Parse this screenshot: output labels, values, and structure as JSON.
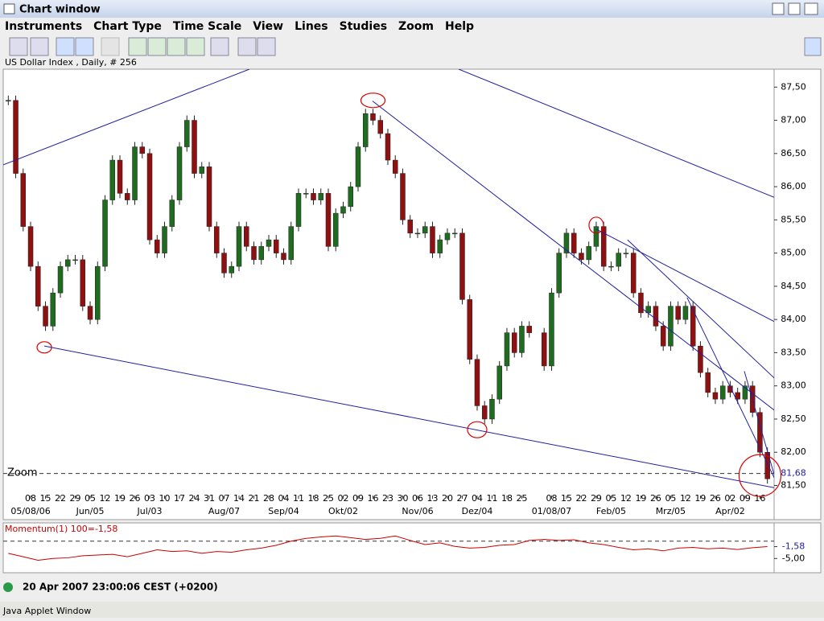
{
  "window": {
    "title": "Chart window"
  },
  "menu": [
    "Instruments",
    "Chart Type",
    "Time Scale",
    "View",
    "Lines",
    "Studies",
    "Zoom",
    "Help"
  ],
  "chart_data": {
    "type": "candlestick",
    "title": "US Dollar Index , Daily, # 256",
    "x": [
      -1.5,
      -1,
      -0.5,
      0,
      0.5,
      1,
      1.5,
      2,
      2.5,
      3,
      3.5,
      4,
      4.5,
      5,
      5.5,
      6,
      6.5,
      7,
      7.5,
      8,
      8.5,
      9,
      9.5,
      10,
      10.5,
      11,
      11.5,
      12,
      12.5,
      13,
      13.5,
      14,
      14.5,
      15,
      15.5,
      16,
      16.5,
      17,
      17.5,
      18,
      18.5,
      19,
      19.5,
      20,
      20.5,
      21,
      21.5,
      22,
      22.5,
      23,
      23.5,
      24,
      24.5,
      25,
      25.5,
      26,
      26.5,
      27,
      27.5,
      28,
      28.5,
      29,
      29.5,
      30,
      30.5,
      31,
      31.5,
      32,
      32.5,
      33,
      33.5,
      34.5,
      35,
      35.5,
      36,
      36.5,
      37,
      37.5,
      38,
      38.5,
      39,
      39.5,
      40,
      40.5,
      41,
      41.5,
      42,
      42.5,
      43,
      43.5,
      44,
      44.5,
      45,
      45.5,
      46,
      46.5,
      47,
      47.5,
      48,
      48.5,
      49,
      49.5
    ],
    "values": [
      87.3,
      86.2,
      85.4,
      84.8,
      84.2,
      83.9,
      84.4,
      84.8,
      84.9,
      84.9,
      84.2,
      84.0,
      84.8,
      85.8,
      86.4,
      85.9,
      85.8,
      86.6,
      86.5,
      85.2,
      85.0,
      85.4,
      85.8,
      86.6,
      87.0,
      86.2,
      86.3,
      85.4,
      85.0,
      84.7,
      84.8,
      85.4,
      85.1,
      84.9,
      85.1,
      85.2,
      85.0,
      84.9,
      85.4,
      85.9,
      85.9,
      85.8,
      85.9,
      85.1,
      85.6,
      85.7,
      86.0,
      86.6,
      87.1,
      87.0,
      86.8,
      86.4,
      86.2,
      85.5,
      85.3,
      85.3,
      85.4,
      85.0,
      85.2,
      85.3,
      85.3,
      84.3,
      83.4,
      82.7,
      82.5,
      82.8,
      83.3,
      83.8,
      83.5,
      83.9,
      83.8,
      83.3,
      84.4,
      85.0,
      85.3,
      85.0,
      84.9,
      85.1,
      85.4,
      84.8,
      84.8,
      85.0,
      85.0,
      84.4,
      84.1,
      84.2,
      83.9,
      83.6,
      84.2,
      84.0,
      84.2,
      83.6,
      83.2,
      82.9,
      82.8,
      83.0,
      82.9,
      82.8,
      83.0,
      82.6,
      82.0,
      81.6
    ],
    "up_color": "#1f6b1f",
    "down_color": "#8f1010",
    "line_color": "#2020a0",
    "xlim": [
      -1.84,
      49.95
    ],
    "xticks": [
      {
        "value": 0,
        "label": "08"
      },
      {
        "value": 1,
        "label": "15"
      },
      {
        "value": 2,
        "label": "22"
      },
      {
        "value": 3,
        "label": "29"
      },
      {
        "value": 4,
        "label": "05"
      },
      {
        "value": 5,
        "label": "12"
      },
      {
        "value": 6,
        "label": "19"
      },
      {
        "value": 7,
        "label": "26"
      },
      {
        "value": 8,
        "label": "03"
      },
      {
        "value": 9,
        "label": "10"
      },
      {
        "value": 10,
        "label": "17"
      },
      {
        "value": 11,
        "label": "24"
      },
      {
        "value": 12,
        "label": "31"
      },
      {
        "value": 13,
        "label": "07"
      },
      {
        "value": 14,
        "label": "14"
      },
      {
        "value": 15,
        "label": "21"
      },
      {
        "value": 16,
        "label": "28"
      },
      {
        "value": 17,
        "label": "04"
      },
      {
        "value": 18,
        "label": "11"
      },
      {
        "value": 19,
        "label": "18"
      },
      {
        "value": 20,
        "label": "25"
      },
      {
        "value": 21,
        "label": "02"
      },
      {
        "value": 22,
        "label": "09"
      },
      {
        "value": 23,
        "label": "16"
      },
      {
        "value": 24,
        "label": "23"
      },
      {
        "value": 25,
        "label": "30"
      },
      {
        "value": 26,
        "label": "06"
      },
      {
        "value": 27,
        "label": "13"
      },
      {
        "value": 28,
        "label": "20"
      },
      {
        "value": 29,
        "label": "27"
      },
      {
        "value": 30,
        "label": "04"
      },
      {
        "value": 31,
        "label": "11"
      },
      {
        "value": 32,
        "label": "18"
      },
      {
        "value": 33,
        "label": "25"
      },
      {
        "value": 35,
        "label": "08"
      },
      {
        "value": 36,
        "label": "15"
      },
      {
        "value": 37,
        "label": "22"
      },
      {
        "value": 38,
        "label": "29"
      },
      {
        "value": 39,
        "label": "05"
      },
      {
        "value": 40,
        "label": "12"
      },
      {
        "value": 41,
        "label": "19"
      },
      {
        "value": 42,
        "label": "26"
      },
      {
        "value": 43,
        "label": "05"
      },
      {
        "value": 44,
        "label": "12"
      },
      {
        "value": 45,
        "label": "19"
      },
      {
        "value": 46,
        "label": "26"
      },
      {
        "value": 47,
        "label": "02"
      },
      {
        "value": 48,
        "label": "09"
      },
      {
        "value": 49,
        "label": "16"
      }
    ],
    "month_labels": [
      {
        "value": 0,
        "label": "05/08/06"
      },
      {
        "value": 4,
        "label": "Jun/05"
      },
      {
        "value": 8,
        "label": "Jul/03"
      },
      {
        "value": 13,
        "label": "Aug/07"
      },
      {
        "value": 17,
        "label": "Sep/04"
      },
      {
        "value": 21,
        "label": "Okt/02"
      },
      {
        "value": 26,
        "label": "Nov/06"
      },
      {
        "value": 30,
        "label": "Dez/04"
      },
      {
        "value": 35,
        "label": "01/08/07"
      },
      {
        "value": 39,
        "label": "Feb/05"
      },
      {
        "value": 43,
        "label": "Mrz/05"
      },
      {
        "value": 47,
        "label": "Apr/02"
      }
    ],
    "ylim": [
      81.3,
      87.77
    ],
    "yticks": [
      {
        "value": 87.5,
        "label": "87,50"
      },
      {
        "value": 87,
        "label": "87,00"
      },
      {
        "value": 86.5,
        "label": "86,50"
      },
      {
        "value": 86,
        "label": "86,00"
      },
      {
        "value": 85.5,
        "label": "85,50"
      },
      {
        "value": 85,
        "label": "85,00"
      },
      {
        "value": 84.5,
        "label": "84,50"
      },
      {
        "value": 84,
        "label": "84,00"
      },
      {
        "value": 83.5,
        "label": "83,50"
      },
      {
        "value": 83,
        "label": "83,00"
      },
      {
        "value": 82.5,
        "label": "82,50"
      },
      {
        "value": 82,
        "label": "82,00"
      },
      {
        "value": 81.5,
        "label": "81,50"
      }
    ],
    "last": {
      "value": 81.68,
      "label": "81,68"
    },
    "zoom_label": "Zoom",
    "trend_lines": [
      [
        -1.84,
        86.33,
        14.7,
        87.77
      ],
      [
        0.92,
        83.6,
        50.1,
        81.46
      ],
      [
        22.97,
        87.29,
        50.1,
        82.61
      ],
      [
        28.76,
        87.77,
        49.95,
        85.84
      ],
      [
        38,
        85.36,
        49.95,
        83.97
      ],
      [
        40.1,
        85.2,
        49.95,
        83.12
      ],
      [
        44.1,
        84.33,
        50.1,
        81.55
      ],
      [
        47.95,
        83.22,
        50.1,
        81.55
      ]
    ],
    "circles": [
      [
        0.92,
        83.58
      ],
      [
        23,
        87.3
      ],
      [
        30,
        82.34
      ],
      [
        38,
        85.42
      ],
      [
        49,
        81.65
      ]
    ]
  },
  "momentum": {
    "type": "line",
    "title": "Momentum(1) 100=-1,58",
    "color": "#cc0000",
    "x": [
      -1.5,
      -0.5,
      0.5,
      1.5,
      2.5,
      3.5,
      4.5,
      5.5,
      6.5,
      7.5,
      8.5,
      9.5,
      10.5,
      11.5,
      12.5,
      13.5,
      14.5,
      15.5,
      16.5,
      17.5,
      18.5,
      19.5,
      20.5,
      21.5,
      22.5,
      23.5,
      24.5,
      25.5,
      26.5,
      27.5,
      28.5,
      29.5,
      30.5,
      31.5,
      32.5,
      33.5,
      34.5,
      35.5,
      36.5,
      37.5,
      38.5,
      39.5,
      40.5,
      41.5,
      42.5,
      43.5,
      44.5,
      45.5,
      46.5,
      47.5,
      48.5,
      49.5
    ],
    "values": [
      -3.5,
      -4.5,
      -5.5,
      -5.0,
      -4.8,
      -4.2,
      -4.0,
      -3.8,
      -4.5,
      -3.5,
      -2.5,
      -3.0,
      -2.8,
      -3.5,
      -3.0,
      -3.2,
      -2.5,
      -2.0,
      -1.2,
      0.0,
      0.8,
      1.2,
      1.5,
      1.0,
      0.5,
      0.8,
      1.5,
      0.2,
      -1.0,
      -0.5,
      -1.5,
      -2.0,
      -1.8,
      -1.2,
      -1.0,
      0.2,
      0.5,
      0.2,
      0.4,
      -0.5,
      -1.0,
      -1.8,
      -2.5,
      -2.2,
      -2.8,
      -2.0,
      -1.8,
      -2.2,
      -2.0,
      -2.4,
      -1.9,
      -1.58
    ],
    "ylim": [
      -9.1,
      4.8
    ],
    "yticks": [
      {
        "value": -1.58,
        "label": "-1,58"
      },
      {
        "value": -5,
        "label": "-5,00"
      }
    ],
    "reference": 0
  },
  "status": {
    "time": "20 Apr 2007 23:00:06  CEST (+0200)"
  },
  "footer": "Java Applet Window"
}
